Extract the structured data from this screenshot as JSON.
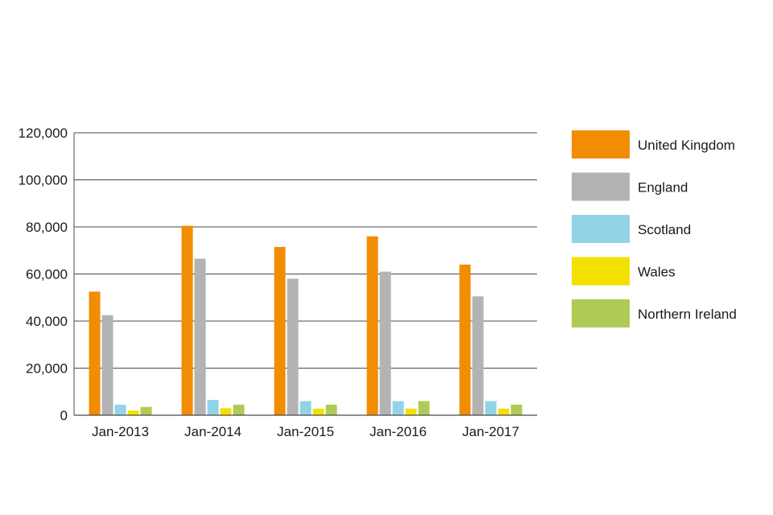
{
  "chart_data": {
    "type": "bar",
    "categories": [
      "Jan-2013",
      "Jan-2014",
      "Jan-2015",
      "Jan-2016",
      "Jan-2017"
    ],
    "series": [
      {
        "name": "United Kingdom",
        "color": "#F28C00",
        "values": [
          52500,
          80500,
          71500,
          76000,
          64000
        ]
      },
      {
        "name": "England",
        "color": "#B3B3B3",
        "values": [
          42500,
          66500,
          58000,
          61000,
          50500
        ]
      },
      {
        "name": "Scotland",
        "color": "#93D3E8",
        "values": [
          4500,
          6500,
          6000,
          6000,
          6000
        ]
      },
      {
        "name": "Wales",
        "color": "#F2E100",
        "values": [
          2000,
          3000,
          2800,
          2800,
          2800
        ]
      },
      {
        "name": "Northern Ireland",
        "color": "#AFCB56",
        "values": [
          3500,
          4500,
          4500,
          6000,
          4500
        ]
      }
    ],
    "y_ticks": [
      "0",
      "20,000",
      "40,000",
      "60,000",
      "80,000",
      "100,000",
      "120,000"
    ],
    "ylim": [
      0,
      120000
    ],
    "grid": true,
    "legend_position": "right"
  }
}
